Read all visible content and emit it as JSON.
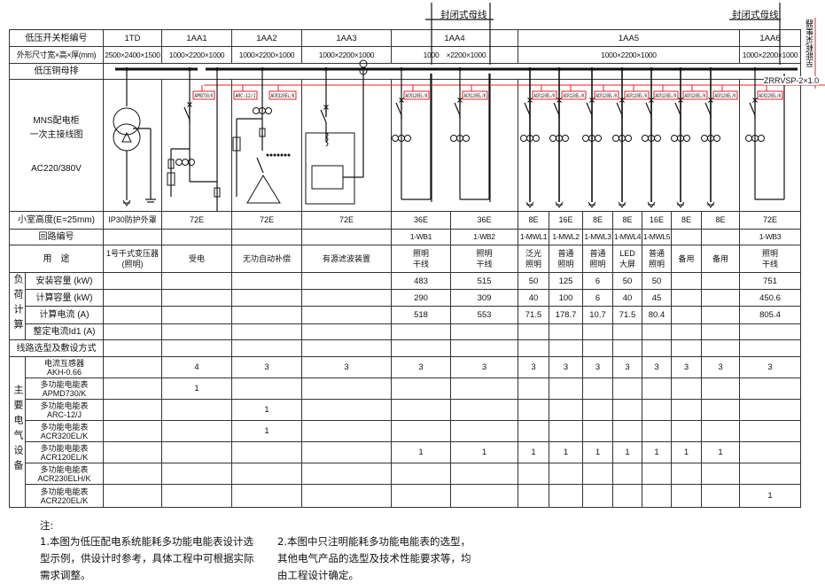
{
  "header_labels": {
    "cabinet_no": "低压开关柜编号",
    "dimensions": "外形尺寸宽×高×厚(mm)",
    "busbar": "低压铜母排",
    "diagram": [
      "MNS配电柜",
      "一次主接线图",
      "AC220/380V"
    ],
    "compartment": "小室高度(E=25mm)",
    "circuit_no": "回路编号",
    "usage": "用　途",
    "load_calc_group": "负荷计算",
    "installed": "安装容量 (kW)",
    "calc_capacity": "计算容量 (kW)",
    "calc_current": "计算电流 (A)",
    "setting_current": "整定电流Id1 (A)",
    "cable": "线路选型及敷设方式",
    "equipment_group": "主要电气设备"
  },
  "cabinets": [
    {
      "id": "1TD",
      "size": "2500×2400×1500"
    },
    {
      "id": "1AA1",
      "size": "1000×2200×1000"
    },
    {
      "id": "1AA2",
      "size": "1000×2200×1000"
    },
    {
      "id": "1AA3",
      "size": "1000×2200×1000"
    },
    {
      "id": "1AA4",
      "size": "1000　×2200×1000"
    },
    {
      "id": "1AA5",
      "size": "1000×2200×1000"
    },
    {
      "id": "1AA6",
      "size": "1000×2200×1000"
    }
  ],
  "busway_label": "封闭式母线",
  "side_label": "至能耗采集器",
  "cable_label": "ZRRVSP-2×1.0",
  "meter_labels": {
    "1AA1": "APMD730/K",
    "1AA2a": "ARC-12/J",
    "1AA2b": "ACR320EL/K",
    "1AA4": "ACR120EL/K",
    "1AA5": "ACR120EL/K",
    "1AA6": "ACR220EL/K"
  },
  "columns": [
    {
      "compartment": "IP30防护外罩",
      "circuit": "",
      "usage": "1号干式变压器\n(照明)",
      "installed": "",
      "calc": "",
      "current": ""
    },
    {
      "compartment": "72E",
      "circuit": "",
      "usage": "受电",
      "installed": "",
      "calc": "",
      "current": ""
    },
    {
      "compartment": "72E",
      "circuit": "",
      "usage": "无功自动补偿",
      "installed": "",
      "calc": "",
      "current": ""
    },
    {
      "compartment": "72E",
      "circuit": "",
      "usage": "有源滤波装置",
      "installed": "",
      "calc": "",
      "current": ""
    },
    {
      "compartment": "36E",
      "circuit": "1-WB1",
      "usage": "照明\n干线",
      "installed": "483",
      "calc": "290",
      "current": "518"
    },
    {
      "compartment": "36E",
      "circuit": "1-WB2",
      "usage": "照明\n干线",
      "installed": "515",
      "calc": "309",
      "current": "553"
    },
    {
      "compartment": "8E",
      "circuit": "1-MWL1",
      "usage": "泛光\n照明",
      "installed": "50",
      "calc": "40",
      "current": "71.5"
    },
    {
      "compartment": "16E",
      "circuit": "1-MWL2",
      "usage": "普通\n照明",
      "installed": "125",
      "calc": "100",
      "current": "178.7"
    },
    {
      "compartment": "8E",
      "circuit": "1-MWL3",
      "usage": "普通\n照明",
      "installed": "6",
      "calc": "6",
      "current": "10.7"
    },
    {
      "compartment": "8E",
      "circuit": "1-MWL4",
      "usage": "LED\n大屏",
      "installed": "50",
      "calc": "40",
      "current": "71.5"
    },
    {
      "compartment": "16E",
      "circuit": "1-MWL5",
      "usage": "普通\n照明",
      "installed": "50",
      "calc": "45",
      "current": "80.4"
    },
    {
      "compartment": "8E",
      "circuit": "",
      "usage": "备用",
      "installed": "",
      "calc": "",
      "current": ""
    },
    {
      "compartment": "8E",
      "circuit": "",
      "usage": "备用",
      "installed": "",
      "calc": "",
      "current": ""
    },
    {
      "compartment": "72E",
      "circuit": "1-WB3",
      "usage": "照明\n干线",
      "installed": "751",
      "calc": "450.6",
      "current": "805.4"
    }
  ],
  "equipment": [
    {
      "name": "电流互感器",
      "model": "AKH-0.66",
      "qty": [
        "",
        "4",
        "3",
        "3",
        "3",
        "3",
        "3",
        "3",
        "3",
        "3",
        "3",
        "3",
        "3",
        "3"
      ]
    },
    {
      "name": "多功能电能表",
      "model": "APMD730/K",
      "qty": [
        "",
        "1",
        "",
        "",
        "",
        "",
        "",
        "",
        "",
        "",
        "",
        "",
        "",
        ""
      ]
    },
    {
      "name": "多功能电能表",
      "model": "ARC-12/J",
      "qty": [
        "",
        "",
        "1",
        "",
        "",
        "",
        "",
        "",
        "",
        "",
        "",
        "",
        "",
        ""
      ]
    },
    {
      "name": "多功能电能表",
      "model": "ACR320EL/K",
      "qty": [
        "",
        "",
        "1",
        "",
        "",
        "",
        "",
        "",
        "",
        "",
        "",
        "",
        "",
        ""
      ]
    },
    {
      "name": "多功能电能表",
      "model": "ACR120EL/K",
      "qty": [
        "",
        "",
        "",
        "",
        "1",
        "1",
        "1",
        "1",
        "1",
        "1",
        "1",
        "1",
        "1",
        ""
      ]
    },
    {
      "name": "多功能电能表",
      "model": "ACR230ELH/K",
      "qty": [
        "",
        "",
        "",
        "",
        "",
        "",
        "",
        "",
        "",
        "",
        "",
        "",
        "",
        ""
      ]
    },
    {
      "name": "多功能电能表",
      "model": "ACR220EL/K",
      "qty": [
        "",
        "",
        "",
        "",
        "",
        "",
        "",
        "",
        "",
        "",
        "",
        "",
        "",
        "1"
      ]
    }
  ],
  "notes": {
    "title": "注:",
    "note1": [
      "1.本图为低压配电系统能耗多功能电能表设计选",
      "型示例，供设计时参考，具体工程中可根据实际",
      "需求调整。"
    ],
    "note2": [
      "2.本图中只注明能耗多功能电能表的选型，",
      "其他电气产品的选型及技术性能要求等，均",
      "由工程设计确定。"
    ]
  },
  "colors": {
    "line": "#111111",
    "signal": "#e8202a"
  }
}
